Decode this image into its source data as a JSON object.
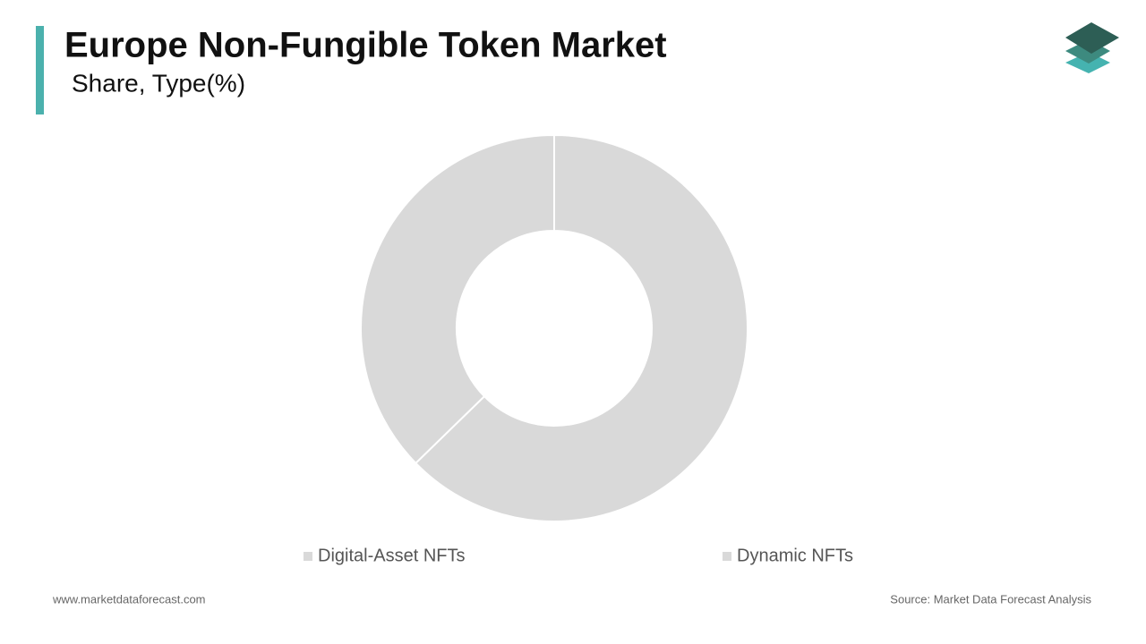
{
  "chart_data": {
    "type": "donut",
    "title": "Europe Non-Fungible Token Market",
    "subtitle": "Share, Type(%)",
    "categories": [
      "Digital-Asset NFTs",
      "Dynamic NFTs"
    ],
    "values": [
      62.7,
      37.3
    ],
    "colors": [
      "#d9d9d9",
      "#d9d9d9"
    ]
  },
  "footer": {
    "website": "www.marketdataforecast.com",
    "source": "Source: Market Data Forecast Analysis"
  }
}
